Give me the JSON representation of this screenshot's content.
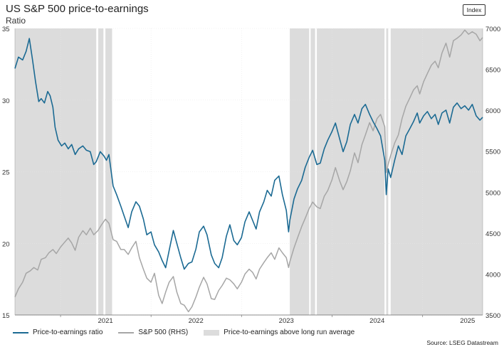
{
  "header": {
    "title": "US S&P 500 price-to-earnings",
    "subtitle": "Ratio",
    "badge": "Index"
  },
  "legend": {
    "items": [
      "Price-to-earnings ratio",
      "S&P 500 (RHS)",
      "Price-to-earnings above long run average"
    ]
  },
  "source": "Source: LSEG Datastream",
  "colors": {
    "pe": "#1b6a93",
    "spx": "#a6a6a6",
    "shade": "#dcdcdc",
    "grid": "#e6e6e6"
  },
  "chart_data": {
    "type": "line",
    "x_ticks": [
      "2021",
      "2022",
      "2023",
      "2024",
      "2025"
    ],
    "y_left": {
      "label": "Ratio",
      "range": [
        15,
        35
      ],
      "ticks": [
        "15",
        "20",
        "25",
        "30",
        "35"
      ]
    },
    "y_right": {
      "label": "Index",
      "range": [
        3500,
        7000
      ],
      "ticks": [
        "3500",
        "4000",
        "4500",
        "5000",
        "5500",
        "6000",
        "6500",
        "7000"
      ]
    },
    "x_range": [
      "2020-07-01",
      "2025-08-31"
    ],
    "shaded_periods": [
      [
        "2020-07-01",
        "2021-05-25"
      ],
      [
        "2021-06-02",
        "2021-06-23"
      ],
      [
        "2021-07-01",
        "2021-07-28"
      ],
      [
        "2023-07-15",
        "2023-10-01"
      ],
      [
        "2023-10-07",
        "2023-10-25"
      ],
      [
        "2023-11-01",
        "2024-07-31"
      ],
      [
        "2024-08-07",
        "2024-08-15"
      ],
      [
        "2024-08-25",
        "2025-08-31"
      ]
    ],
    "series": [
      {
        "name": "Price-to-earnings ratio",
        "axis": "left",
        "points": [
          [
            "2020-07-01",
            32.2
          ],
          [
            "2020-07-15",
            33.0
          ],
          [
            "2020-08-01",
            32.8
          ],
          [
            "2020-08-15",
            33.4
          ],
          [
            "2020-08-28",
            34.3
          ],
          [
            "2020-09-10",
            32.8
          ],
          [
            "2020-09-22",
            31.3
          ],
          [
            "2020-10-05",
            29.9
          ],
          [
            "2020-10-15",
            30.1
          ],
          [
            "2020-10-28",
            29.8
          ],
          [
            "2020-11-10",
            30.6
          ],
          [
            "2020-11-20",
            30.3
          ],
          [
            "2020-12-01",
            29.5
          ],
          [
            "2020-12-10",
            28.1
          ],
          [
            "2020-12-22",
            27.2
          ],
          [
            "2021-01-05",
            26.8
          ],
          [
            "2021-01-18",
            27.0
          ],
          [
            "2021-02-01",
            26.6
          ],
          [
            "2021-02-15",
            26.9
          ],
          [
            "2021-03-01",
            26.2
          ],
          [
            "2021-03-15",
            26.6
          ],
          [
            "2021-04-01",
            26.8
          ],
          [
            "2021-04-15",
            26.5
          ],
          [
            "2021-05-01",
            26.4
          ],
          [
            "2021-05-15",
            25.5
          ],
          [
            "2021-05-25",
            25.7
          ],
          [
            "2021-06-10",
            26.4
          ],
          [
            "2021-06-25",
            26.1
          ],
          [
            "2021-07-05",
            25.8
          ],
          [
            "2021-07-15",
            26.2
          ],
          [
            "2021-08-01",
            24.0
          ],
          [
            "2021-08-15",
            23.4
          ],
          [
            "2021-09-01",
            22.6
          ],
          [
            "2021-09-15",
            21.9
          ],
          [
            "2021-10-01",
            21.1
          ],
          [
            "2021-10-15",
            22.2
          ],
          [
            "2021-11-01",
            22.9
          ],
          [
            "2021-11-15",
            22.6
          ],
          [
            "2021-12-01",
            21.7
          ],
          [
            "2021-12-15",
            20.6
          ],
          [
            "2022-01-01",
            20.8
          ],
          [
            "2022-01-15",
            19.9
          ],
          [
            "2022-02-01",
            19.4
          ],
          [
            "2022-02-15",
            18.8
          ],
          [
            "2022-03-01",
            18.3
          ],
          [
            "2022-03-15",
            19.5
          ],
          [
            "2022-04-01",
            20.9
          ],
          [
            "2022-04-15",
            20.0
          ],
          [
            "2022-05-01",
            19.0
          ],
          [
            "2022-05-15",
            18.2
          ],
          [
            "2022-06-01",
            18.6
          ],
          [
            "2022-06-15",
            18.7
          ],
          [
            "2022-07-01",
            19.6
          ],
          [
            "2022-07-15",
            20.8
          ],
          [
            "2022-08-01",
            21.2
          ],
          [
            "2022-08-15",
            20.6
          ],
          [
            "2022-09-01",
            19.2
          ],
          [
            "2022-09-15",
            18.6
          ],
          [
            "2022-10-01",
            18.3
          ],
          [
            "2022-10-15",
            19.0
          ],
          [
            "2022-11-01",
            20.5
          ],
          [
            "2022-11-15",
            21.3
          ],
          [
            "2022-12-01",
            20.2
          ],
          [
            "2022-12-15",
            19.9
          ],
          [
            "2023-01-01",
            20.4
          ],
          [
            "2023-01-15",
            21.5
          ],
          [
            "2023-02-01",
            22.2
          ],
          [
            "2023-02-15",
            21.6
          ],
          [
            "2023-03-01",
            21.0
          ],
          [
            "2023-03-15",
            22.2
          ],
          [
            "2023-04-01",
            22.9
          ],
          [
            "2023-04-15",
            23.7
          ],
          [
            "2023-05-01",
            23.3
          ],
          [
            "2023-05-15",
            24.4
          ],
          [
            "2023-06-01",
            24.7
          ],
          [
            "2023-06-15",
            23.4
          ],
          [
            "2023-07-01",
            22.3
          ],
          [
            "2023-07-10",
            20.8
          ],
          [
            "2023-07-15",
            21.6
          ],
          [
            "2023-08-01",
            23.1
          ],
          [
            "2023-08-15",
            23.8
          ],
          [
            "2023-09-01",
            24.4
          ],
          [
            "2023-09-15",
            25.3
          ],
          [
            "2023-10-01",
            26.0
          ],
          [
            "2023-10-15",
            26.5
          ],
          [
            "2023-11-01",
            25.5
          ],
          [
            "2023-11-15",
            25.6
          ],
          [
            "2023-12-01",
            26.6
          ],
          [
            "2023-12-15",
            27.2
          ],
          [
            "2024-01-01",
            27.8
          ],
          [
            "2024-01-15",
            28.4
          ],
          [
            "2024-02-01",
            27.3
          ],
          [
            "2024-02-15",
            26.4
          ],
          [
            "2024-03-01",
            27.1
          ],
          [
            "2024-03-15",
            28.3
          ],
          [
            "2024-04-01",
            29.0
          ],
          [
            "2024-04-15",
            28.4
          ],
          [
            "2024-05-01",
            29.4
          ],
          [
            "2024-05-15",
            29.7
          ],
          [
            "2024-06-01",
            29.0
          ],
          [
            "2024-06-15",
            28.5
          ],
          [
            "2024-07-01",
            28.0
          ],
          [
            "2024-07-15",
            27.5
          ],
          [
            "2024-08-01",
            25.8
          ],
          [
            "2024-08-07",
            23.4
          ],
          [
            "2024-08-15",
            25.2
          ],
          [
            "2024-08-25",
            24.6
          ],
          [
            "2024-09-10",
            25.8
          ],
          [
            "2024-09-25",
            26.8
          ],
          [
            "2024-10-10",
            26.2
          ],
          [
            "2024-10-25",
            27.5
          ],
          [
            "2024-11-10",
            28.0
          ],
          [
            "2024-11-25",
            28.5
          ],
          [
            "2024-12-10",
            29.1
          ],
          [
            "2024-12-20",
            28.4
          ],
          [
            "2025-01-05",
            28.9
          ],
          [
            "2025-01-20",
            29.2
          ],
          [
            "2025-02-05",
            28.7
          ],
          [
            "2025-02-20",
            29.0
          ],
          [
            "2025-03-05",
            28.3
          ],
          [
            "2025-03-20",
            29.1
          ],
          [
            "2025-04-05",
            29.3
          ],
          [
            "2025-04-20",
            28.4
          ],
          [
            "2025-05-05",
            29.5
          ],
          [
            "2025-05-20",
            29.8
          ],
          [
            "2025-06-05",
            29.4
          ],
          [
            "2025-06-20",
            29.6
          ],
          [
            "2025-07-05",
            29.3
          ],
          [
            "2025-07-20",
            29.7
          ],
          [
            "2025-08-05",
            28.9
          ],
          [
            "2025-08-20",
            28.6
          ],
          [
            "2025-08-31",
            28.8
          ]
        ]
      },
      {
        "name": "S&P 500 (RHS)",
        "axis": "right",
        "points": [
          [
            "2020-07-01",
            3720
          ],
          [
            "2020-07-15",
            3820
          ],
          [
            "2020-08-01",
            3900
          ],
          [
            "2020-08-15",
            4010
          ],
          [
            "2020-09-01",
            4040
          ],
          [
            "2020-09-15",
            4080
          ],
          [
            "2020-10-01",
            4050
          ],
          [
            "2020-10-15",
            4180
          ],
          [
            "2020-11-01",
            4200
          ],
          [
            "2020-11-15",
            4260
          ],
          [
            "2020-12-01",
            4300
          ],
          [
            "2020-12-15",
            4250
          ],
          [
            "2021-01-01",
            4330
          ],
          [
            "2021-01-15",
            4380
          ],
          [
            "2021-02-01",
            4440
          ],
          [
            "2021-02-15",
            4380
          ],
          [
            "2021-03-01",
            4290
          ],
          [
            "2021-03-15",
            4450
          ],
          [
            "2021-04-01",
            4530
          ],
          [
            "2021-04-15",
            4480
          ],
          [
            "2021-05-01",
            4560
          ],
          [
            "2021-05-15",
            4480
          ],
          [
            "2021-06-01",
            4530
          ],
          [
            "2021-06-15",
            4600
          ],
          [
            "2021-07-01",
            4670
          ],
          [
            "2021-07-15",
            4620
          ],
          [
            "2021-08-01",
            4420
          ],
          [
            "2021-08-15",
            4400
          ],
          [
            "2021-09-01",
            4300
          ],
          [
            "2021-09-15",
            4300
          ],
          [
            "2021-10-01",
            4240
          ],
          [
            "2021-10-15",
            4320
          ],
          [
            "2021-11-01",
            4400
          ],
          [
            "2021-11-15",
            4200
          ],
          [
            "2021-12-01",
            4060
          ],
          [
            "2021-12-15",
            3950
          ],
          [
            "2022-01-01",
            3900
          ],
          [
            "2022-01-15",
            4010
          ],
          [
            "2022-02-01",
            3740
          ],
          [
            "2022-02-15",
            3640
          ],
          [
            "2022-03-01",
            3780
          ],
          [
            "2022-03-15",
            3900
          ],
          [
            "2022-04-01",
            3970
          ],
          [
            "2022-04-15",
            3780
          ],
          [
            "2022-05-01",
            3640
          ],
          [
            "2022-05-15",
            3620
          ],
          [
            "2022-06-01",
            3540
          ],
          [
            "2022-06-15",
            3600
          ],
          [
            "2022-07-01",
            3720
          ],
          [
            "2022-07-15",
            3840
          ],
          [
            "2022-08-01",
            3960
          ],
          [
            "2022-08-15",
            3880
          ],
          [
            "2022-09-01",
            3700
          ],
          [
            "2022-09-15",
            3690
          ],
          [
            "2022-10-01",
            3800
          ],
          [
            "2022-10-15",
            3860
          ],
          [
            "2022-11-01",
            3950
          ],
          [
            "2022-11-15",
            3930
          ],
          [
            "2022-12-01",
            3880
          ],
          [
            "2022-12-15",
            3820
          ],
          [
            "2023-01-01",
            3900
          ],
          [
            "2023-01-15",
            4000
          ],
          [
            "2023-02-01",
            4060
          ],
          [
            "2023-02-15",
            4020
          ],
          [
            "2023-03-01",
            3940
          ],
          [
            "2023-03-15",
            4060
          ],
          [
            "2023-04-01",
            4140
          ],
          [
            "2023-04-15",
            4200
          ],
          [
            "2023-05-01",
            4260
          ],
          [
            "2023-05-15",
            4180
          ],
          [
            "2023-06-01",
            4320
          ],
          [
            "2023-06-15",
            4260
          ],
          [
            "2023-07-01",
            4200
          ],
          [
            "2023-07-10",
            4080
          ],
          [
            "2023-07-15",
            4150
          ],
          [
            "2023-08-01",
            4320
          ],
          [
            "2023-08-15",
            4440
          ],
          [
            "2023-09-01",
            4580
          ],
          [
            "2023-09-15",
            4680
          ],
          [
            "2023-10-01",
            4800
          ],
          [
            "2023-10-15",
            4880
          ],
          [
            "2023-11-01",
            4820
          ],
          [
            "2023-11-15",
            4800
          ],
          [
            "2023-12-01",
            4950
          ],
          [
            "2023-12-15",
            5020
          ],
          [
            "2024-01-01",
            5150
          ],
          [
            "2024-01-15",
            5300
          ],
          [
            "2024-02-01",
            5140
          ],
          [
            "2024-02-15",
            5030
          ],
          [
            "2024-03-01",
            5130
          ],
          [
            "2024-03-15",
            5260
          ],
          [
            "2024-04-01",
            5480
          ],
          [
            "2024-04-15",
            5360
          ],
          [
            "2024-05-01",
            5580
          ],
          [
            "2024-05-15",
            5700
          ],
          [
            "2024-06-01",
            5850
          ],
          [
            "2024-06-15",
            5750
          ],
          [
            "2024-07-01",
            5900
          ],
          [
            "2024-07-15",
            5950
          ],
          [
            "2024-08-01",
            5800
          ],
          [
            "2024-08-07",
            5240
          ],
          [
            "2024-08-15",
            5340
          ],
          [
            "2024-08-25",
            5450
          ],
          [
            "2024-09-10",
            5600
          ],
          [
            "2024-09-25",
            5700
          ],
          [
            "2024-10-10",
            5900
          ],
          [
            "2024-10-25",
            6050
          ],
          [
            "2024-11-10",
            6150
          ],
          [
            "2024-11-25",
            6250
          ],
          [
            "2024-12-10",
            6300
          ],
          [
            "2024-12-20",
            6200
          ],
          [
            "2025-01-05",
            6350
          ],
          [
            "2025-01-20",
            6450
          ],
          [
            "2025-02-05",
            6550
          ],
          [
            "2025-02-20",
            6600
          ],
          [
            "2025-03-05",
            6520
          ],
          [
            "2025-03-20",
            6700
          ],
          [
            "2025-04-05",
            6820
          ],
          [
            "2025-04-20",
            6650
          ],
          [
            "2025-05-05",
            6850
          ],
          [
            "2025-05-20",
            6880
          ],
          [
            "2025-06-05",
            6920
          ],
          [
            "2025-06-20",
            6980
          ],
          [
            "2025-07-05",
            6930
          ],
          [
            "2025-07-20",
            6960
          ],
          [
            "2025-08-05",
            6930
          ],
          [
            "2025-08-20",
            6850
          ],
          [
            "2025-08-31",
            6890
          ]
        ]
      }
    ]
  }
}
